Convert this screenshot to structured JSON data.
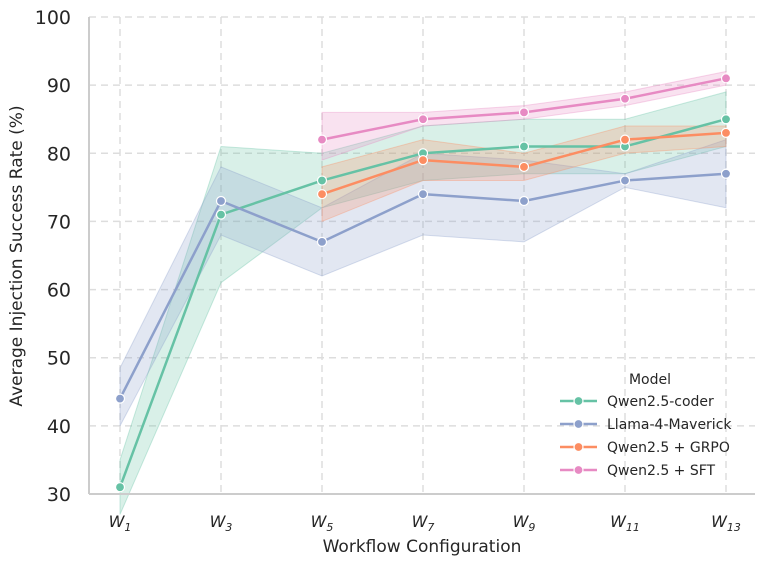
{
  "chart_data": {
    "type": "line",
    "title": "",
    "xlabel": "Workflow Configuration",
    "ylabel": "Average Injection Success Rate (%)",
    "ylim": [
      30,
      100
    ],
    "yticks": [
      30,
      40,
      50,
      60,
      70,
      80,
      90,
      100
    ],
    "grid": true,
    "legend_title": "Model",
    "legend_position": "lower-right",
    "categories": [
      {
        "base": "W",
        "sub": "1"
      },
      {
        "base": "W",
        "sub": "3"
      },
      {
        "base": "W",
        "sub": "5"
      },
      {
        "base": "W",
        "sub": "7"
      },
      {
        "base": "W",
        "sub": "9"
      },
      {
        "base": "W",
        "sub": "11"
      },
      {
        "base": "W",
        "sub": "13"
      }
    ],
    "series": [
      {
        "name": "Qwen2.5-coder",
        "color": "#66c2a5",
        "values": [
          31,
          71,
          76,
          80,
          81,
          81,
          85
        ],
        "lower": [
          27,
          61,
          72,
          76,
          77,
          77,
          81
        ],
        "upper": [
          35,
          81,
          80,
          84,
          85,
          85,
          89
        ]
      },
      {
        "name": "Llama-4-Maverick",
        "color": "#8da0cb",
        "values": [
          44,
          73,
          67,
          74,
          73,
          76,
          77
        ],
        "lower": [
          40,
          68,
          62,
          68,
          67,
          75,
          72
        ],
        "upper": [
          48.5,
          78,
          72,
          80,
          79,
          77,
          82
        ]
      },
      {
        "name": "Qwen2.5 + GRPO",
        "color": "#fc8d62",
        "values": [
          null,
          null,
          74,
          79,
          78,
          82,
          83
        ],
        "lower": [
          null,
          null,
          70,
          76,
          76,
          80,
          81
        ],
        "upper": [
          null,
          null,
          78,
          82,
          80,
          84,
          84
        ]
      },
      {
        "name": "Qwen2.5 + SFT",
        "color": "#e78ac3",
        "values": [
          null,
          null,
          82,
          85,
          86,
          88,
          91
        ],
        "lower": [
          null,
          null,
          79,
          84,
          85,
          87,
          90
        ],
        "upper": [
          null,
          null,
          86,
          86,
          87,
          89,
          92
        ]
      }
    ]
  }
}
